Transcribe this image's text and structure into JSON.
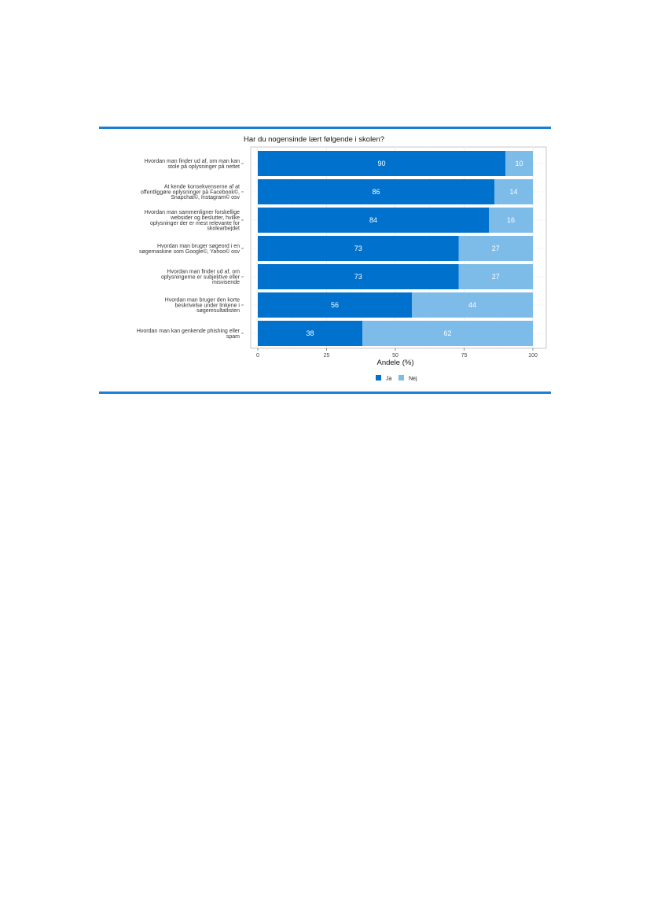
{
  "chart_data": {
    "type": "bar",
    "orientation": "horizontal",
    "stacked": true,
    "title": "Har du nogensinde lært følgende i skolen?",
    "xlabel": "Andele (%)",
    "ylabel": "",
    "xlim": [
      0,
      100
    ],
    "xticks": [
      0,
      25,
      50,
      75,
      100
    ],
    "grid": true,
    "legend_position": "bottom",
    "categories": [
      [
        "Hvordan man finder ud af, om man kan",
        "stole på oplysninger på nettet"
      ],
      [
        "At kende konsekvenserne af at",
        "offentliggøre oplysninger på Facebook©,",
        "Snapchat©, Instagram© osv"
      ],
      [
        "Hvordan man sammenligner forskellige",
        "websider og beslutter, hvilke",
        "oplysninger der er mest relevante for",
        "skolearbejdet"
      ],
      [
        "Hvordan man bruger søgeord i en",
        "søgemaskine som Google©, Yahoo© osv"
      ],
      [
        "Hvordan man finder ud af, om",
        "oplysningerne er subjektive eller",
        "misvisende"
      ],
      [
        "Hvordan man bruger den korte",
        "beskrivelse under linkene i",
        "søgeresultatlisten"
      ],
      [
        "Hvordan man kan genkende phishing eller",
        "spam"
      ]
    ],
    "series": [
      {
        "name": "Ja",
        "color": "#0072ce",
        "values": [
          90,
          86,
          84,
          73,
          73,
          56,
          38
        ]
      },
      {
        "name": "Nej",
        "color": "#7dbbe8",
        "values": [
          10,
          14,
          16,
          27,
          27,
          44,
          62
        ]
      }
    ]
  }
}
